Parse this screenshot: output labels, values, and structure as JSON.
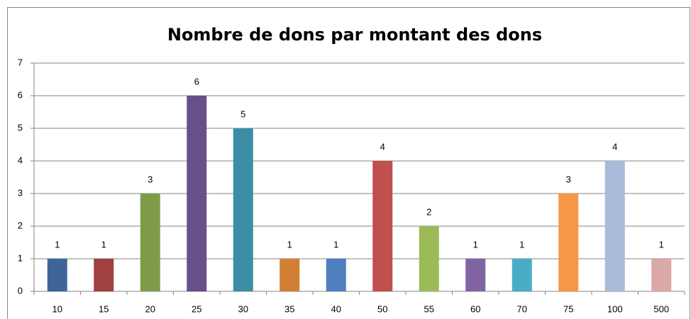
{
  "chart_data": {
    "type": "bar",
    "title": "Nombre de dons par montant des dons",
    "categories": [
      "10",
      "15",
      "20",
      "25",
      "30",
      "35",
      "40",
      "50",
      "55",
      "60",
      "70",
      "75",
      "100",
      "500"
    ],
    "values": [
      1,
      1,
      3,
      6,
      5,
      1,
      1,
      4,
      2,
      1,
      1,
      3,
      4,
      1
    ],
    "colors": [
      "#3f6597",
      "#a04040",
      "#7f9b48",
      "#694f8a",
      "#3c8ea4",
      "#d17f35",
      "#4f7fc0",
      "#c0504d",
      "#9bbb59",
      "#8064a2",
      "#4bacc6",
      "#f79646",
      "#a9bbd9",
      "#d9a8a7"
    ],
    "ylim": [
      0,
      7
    ],
    "yticks": [
      0,
      1,
      2,
      3,
      4,
      5,
      6,
      7
    ],
    "grid": true
  }
}
